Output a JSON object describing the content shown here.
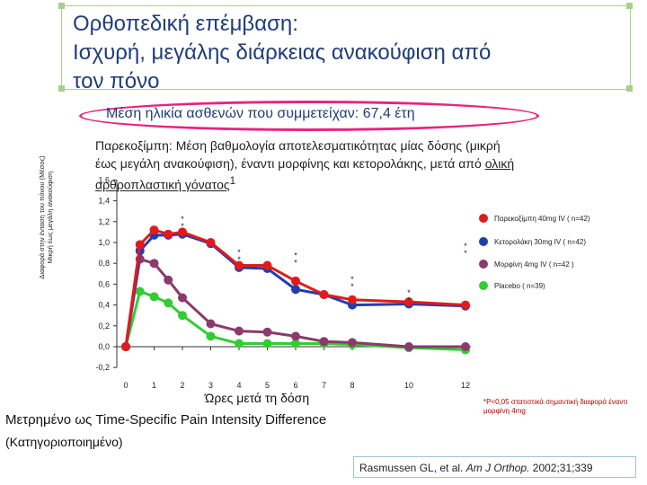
{
  "slide": {
    "title_line1": "Ορθοπεδική επέμβαση:",
    "title_line2": "Ισχυρή, μεγάλης διάρκειας ανακούφιση από",
    "title_line3": "τον πόνο",
    "highlight": "Μέση ηλικία ασθενών που συμμετείχαν: 67,4 έτη",
    "subtitle_part1": "Παρεκοξίμπη: Μέση βαθμολογία αποτελεσματικότητας μίας δόσης (μικρή έως μεγάλη ανακούφιση), έναντι μορφίνης και κετορολάκης, μετά από ",
    "subtitle_underlined": "ολική αρθροπλαστική γόνατος",
    "subtitle_sup": "1",
    "measured_label": "Μετρημένο ως Time-Specific Pain Intensity Difference",
    "categorized_label": "(Κατηγοριοποιημένο)",
    "footnote": "*P<0,05 στατιστικά σημαντική διαφορά έναντι μορφίνη 4mg",
    "citation_authors": "Rasmussen GL, et al.",
    "citation_journal": "Am J Orthop.",
    "citation_rest": "2002;31;339"
  },
  "chart_data": {
    "type": "line",
    "ylabel_line1": "Διαφορά στην ένταση του πόνου (Μέσος)",
    "ylabel_line2": "Μικρή έως μεγάλη ανακούφιση",
    "xlabel": "Ώρες μετά τη δόση",
    "ylim": [
      -0.2,
      1.6
    ],
    "y_ticks": [
      -0.2,
      0.0,
      0.2,
      0.4,
      0.6,
      0.8,
      1.0,
      1.2,
      1.4,
      1.6
    ],
    "y_tick_labels": [
      "-0,2",
      "0,0",
      "0,2",
      "0,4",
      "0,6",
      "0,8",
      "1,0",
      "1,2",
      "1,4",
      "1,6"
    ],
    "x_ticks": [
      0,
      1,
      2,
      3,
      4,
      5,
      6,
      7,
      8,
      10,
      12
    ],
    "grid": false,
    "legend_position": "right",
    "x": [
      0,
      0.5,
      1,
      1.5,
      2,
      3,
      4,
      5,
      6,
      7,
      8,
      10,
      12
    ],
    "series": [
      {
        "name": "Παρεκοξίμπη 40mg IV ( n=42)",
        "color": "#e31a1c",
        "marker": "circle",
        "values": [
          0.0,
          0.98,
          1.12,
          1.08,
          1.1,
          1.0,
          0.78,
          0.78,
          0.63,
          0.5,
          0.45,
          0.43,
          0.4
        ]
      },
      {
        "name": "Κετορολάκη 30mg IV ( n=42)",
        "color": "#1f3fb0",
        "marker": "circle",
        "values": [
          0.0,
          0.92,
          1.07,
          1.07,
          1.08,
          0.99,
          0.76,
          0.75,
          0.55,
          0.5,
          0.4,
          0.41,
          0.39
        ]
      },
      {
        "name": "Μορφίνη 4mg IV ( n=42 )",
        "color": "#8b3a6b",
        "marker": "circle",
        "values": [
          0.0,
          0.84,
          0.8,
          0.64,
          0.47,
          0.22,
          0.15,
          0.14,
          0.1,
          0.05,
          0.04,
          0.0,
          0.0
        ]
      },
      {
        "name": "Placebo ( n=39)",
        "color": "#33cc33",
        "marker": "circle",
        "values": [
          0.0,
          0.53,
          0.48,
          0.42,
          0.3,
          0.1,
          0.03,
          0.03,
          0.03,
          0.03,
          0.02,
          -0.01,
          -0.03
        ]
      }
    ],
    "significance_markers": [
      {
        "x": 2,
        "y": 1.2,
        "text": "*\n*"
      },
      {
        "x": 4,
        "y": 0.88,
        "text": "*\n*"
      },
      {
        "x": 6,
        "y": 0.85,
        "text": "*\n*"
      },
      {
        "x": 8,
        "y": 0.62,
        "text": "*\n*"
      },
      {
        "x": 10,
        "y": 0.49,
        "text": "*\n*"
      },
      {
        "x": 12,
        "y": 0.94,
        "text": "*\n*"
      }
    ]
  }
}
